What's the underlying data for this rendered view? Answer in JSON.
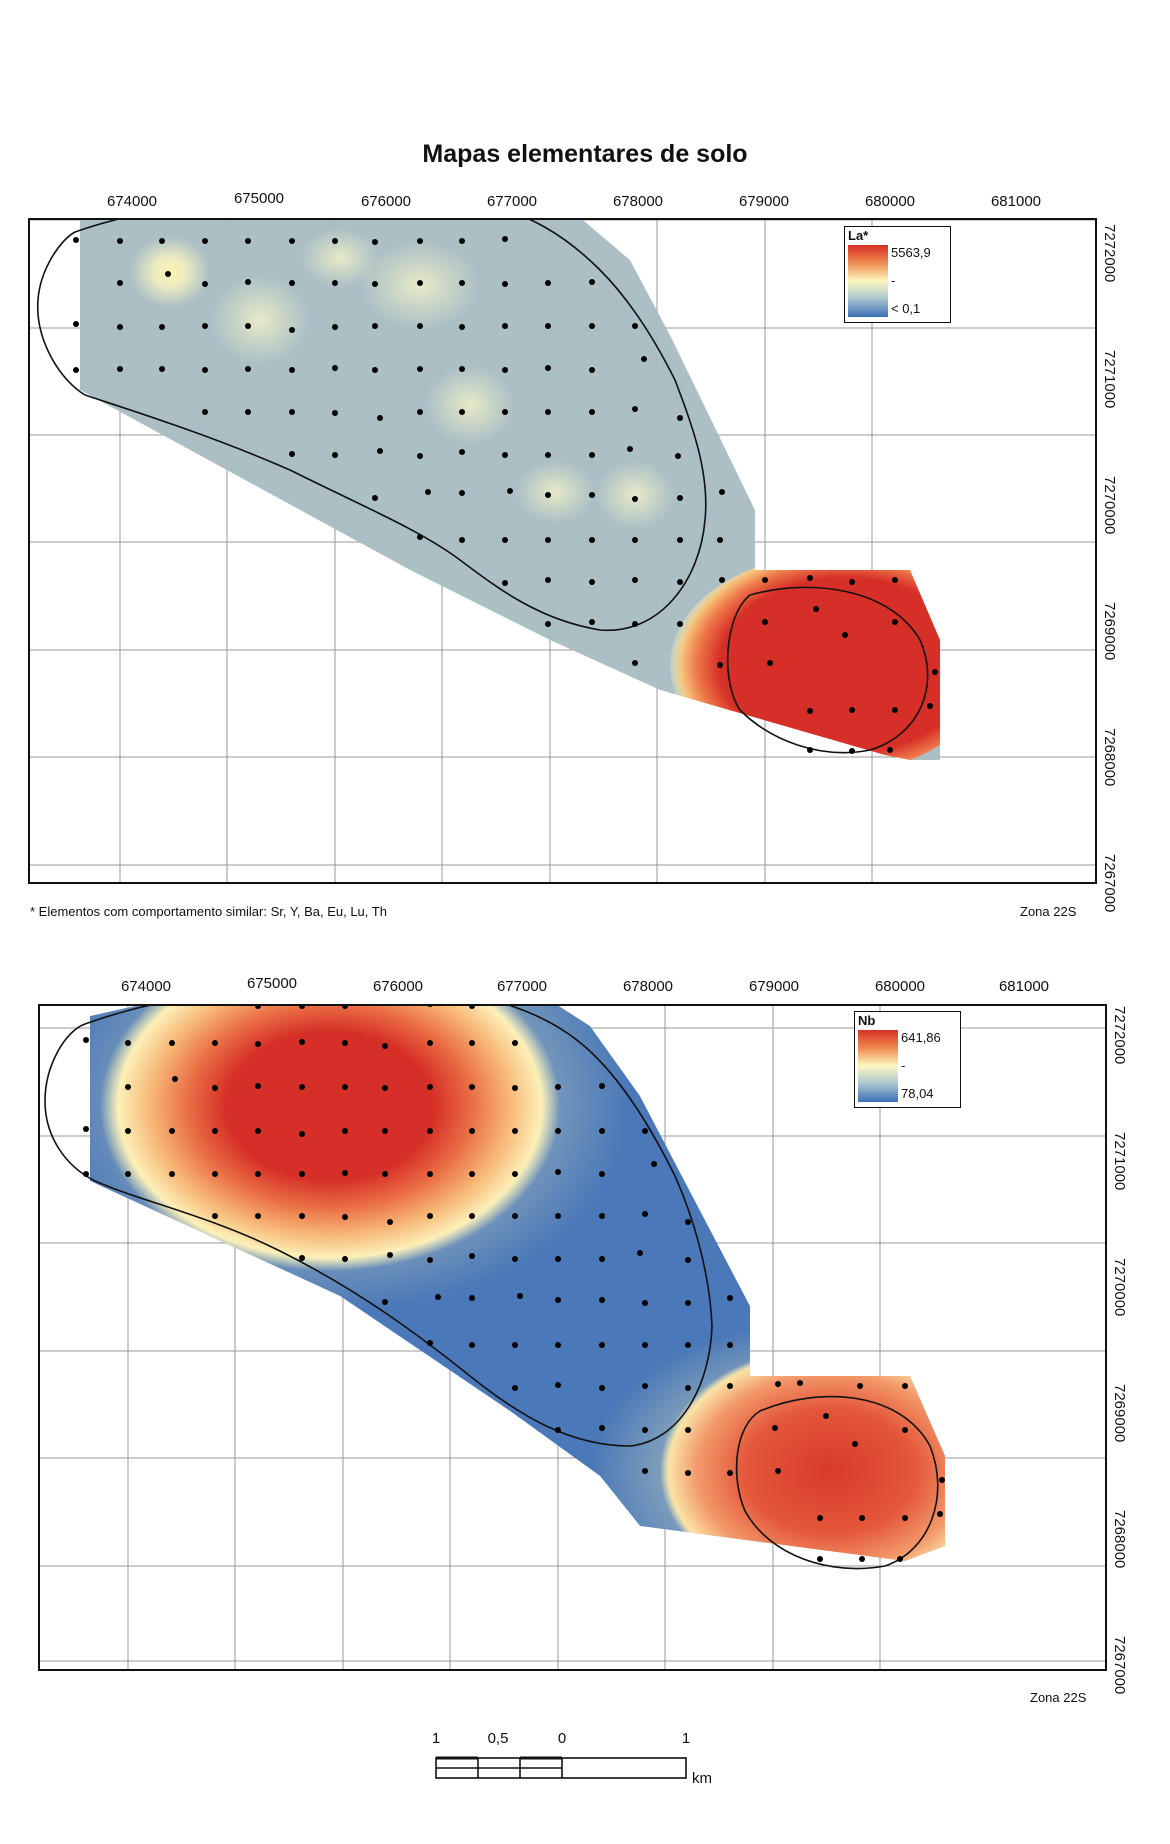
{
  "title": "Mapas elementares de solo",
  "x_ticks": [
    "674000",
    "675000",
    "676000",
    "677000",
    "678000",
    "679000",
    "680000",
    "681000"
  ],
  "y_ticks": [
    "7272000",
    "7271000",
    "7270000",
    "7269000",
    "7268000",
    "7267000"
  ],
  "maps": [
    {
      "legend": {
        "title": "La*",
        "max": "5563,9",
        "mid": "-",
        "min": "< 0,1"
      },
      "note": "* Elementos com comportamento similar: Sr, Y, Ba, Eu, Lu, Th",
      "zone": "Zona 22S",
      "surface_colors": {
        "low": "#3b6fb6",
        "mid": "#fcf7c0",
        "high": "#d62f27",
        "background": "#a6bcc2"
      }
    },
    {
      "legend": {
        "title": "Nb",
        "max": "641,86",
        "mid": "-",
        "min": "78,04"
      },
      "zone": "Zona 22S",
      "surface_colors": {
        "low": "#3b6fb6",
        "mid": "#fcf7c0",
        "high": "#d62f27"
      }
    }
  ],
  "scale_bar": {
    "labels": [
      "1",
      "0,5",
      "0",
      "1"
    ],
    "unit": "km"
  }
}
